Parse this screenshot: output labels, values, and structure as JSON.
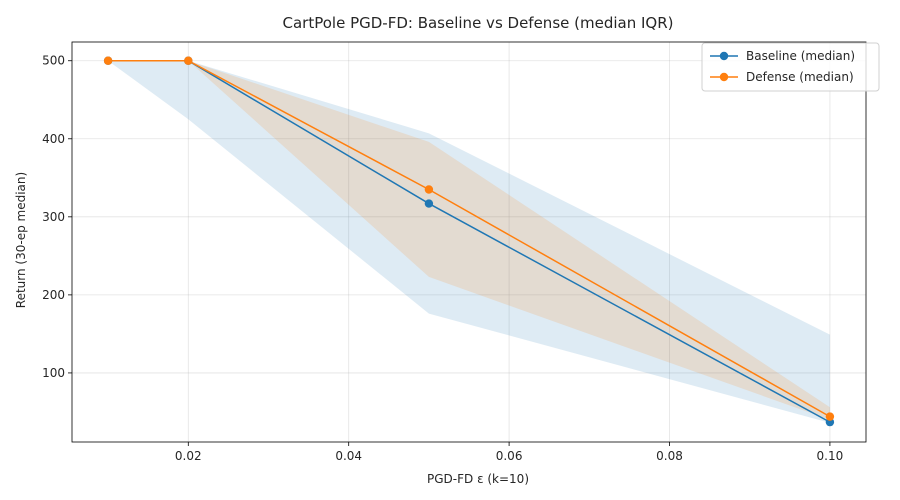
{
  "chart_data": {
    "type": "line",
    "title": "CartPole  PGD-FD: Baseline vs Defense (median  IQR)",
    "xlabel": "PGD-FD ε (k=10)",
    "ylabel": "Return (30-ep median)",
    "x": [
      0.01,
      0.02,
      0.05,
      0.1
    ],
    "xlim": [
      0.0055,
      0.1045
    ],
    "ylim": [
      11.5,
      524
    ],
    "xticks": [
      0.02,
      0.04,
      0.06,
      0.08,
      0.1
    ],
    "xtick_labels": [
      "0.02",
      "0.04",
      "0.06",
      "0.08",
      "0.10"
    ],
    "yticks": [
      100,
      200,
      300,
      400,
      500
    ],
    "ytick_labels": [
      "100",
      "200",
      "300",
      "400",
      "500"
    ],
    "grid": true,
    "legend_position": "top-right",
    "series": [
      {
        "name": "Baseline (median)",
        "color": "#1f77b4",
        "values": [
          500,
          500,
          317,
          37
        ],
        "iqr_low": [
          500,
          425,
          176,
          36
        ],
        "iqr_high": [
          500,
          500,
          407,
          149
        ]
      },
      {
        "name": "Defense (median)",
        "color": "#ff7f0e",
        "values": [
          500,
          500,
          335,
          44
        ],
        "iqr_low": [
          500,
          500,
          223,
          40
        ],
        "iqr_high": [
          500,
          500,
          396,
          56
        ]
      }
    ]
  }
}
